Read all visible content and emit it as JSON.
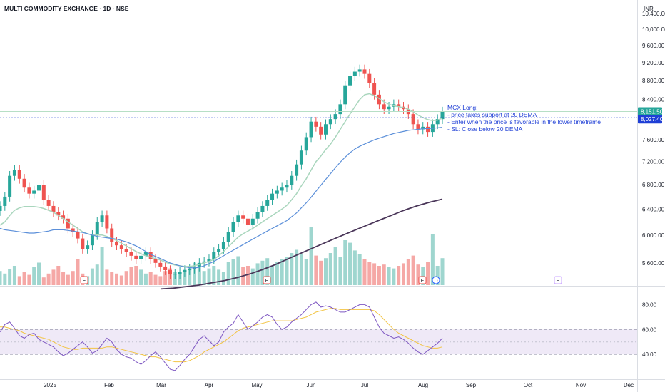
{
  "header": {
    "title": "MULTI COMMODITY EXCHANGE · 1D · NSE",
    "currency": "INR"
  },
  "colors": {
    "up": "#26a69a",
    "down": "#ef5350",
    "vol_up": "#9fd6cf",
    "vol_down": "#f5a8a6",
    "ema_fast": "#a9d6bd",
    "ma_mid": "#5b8fd9",
    "ma_slow": "#4a3659",
    "rsi": "#7e57c2",
    "rsi_ma": "#f2c443",
    "annotation": "#1f3fd6",
    "price_line": "#1f3fd6",
    "last_price_bg": "#26a69a"
  },
  "annotation": {
    "lines": [
      "MCX Long:",
      "- price takes support at 20 DEMA",
      "- Enter when the price is favorable in the lower timeframe",
      "- SL: Close below 20 DEMA"
    ]
  },
  "price_axis": {
    "labels": [
      "10,400.00",
      "10,000.00",
      "9,600.00",
      "9,200.00",
      "8,800.00",
      "8,400.00",
      "7,600.00",
      "7,200.00",
      "6,800.00",
      "6,400.00",
      "6,000.00",
      "5,600.00"
    ],
    "last_price": "8,151.50",
    "line_price": "8,027.40"
  },
  "rsi_axis": {
    "labels": [
      "80.00",
      "60.00",
      "40.00"
    ]
  },
  "time_axis": {
    "labels": [
      "2025",
      "Feb",
      "Mar",
      "Apr",
      "May",
      "Jun",
      "Jul",
      "Aug",
      "Sep",
      "Oct",
      "Nov",
      "Dec"
    ]
  },
  "event_markers": [
    "E",
    "E",
    "E",
    "D",
    "E"
  ],
  "chart_data": {
    "type": "candlestick",
    "ylim": [
      5300,
      10600
    ],
    "rsi_ylim": [
      20,
      90
    ],
    "rsi_band": [
      40,
      60
    ],
    "last_price": 8151.5,
    "line_price": 8027.4,
    "x_labels": [
      "2025",
      "Feb",
      "Mar",
      "Apr",
      "May",
      "Jun",
      "Jul",
      "Aug",
      "Sep",
      "Oct",
      "Nov",
      "Dec"
    ],
    "close_path": [
      6450,
      6600,
      6950,
      7050,
      6900,
      6750,
      6650,
      6700,
      6800,
      6550,
      6450,
      6350,
      6300,
      6250,
      6100,
      6050,
      5950,
      5800,
      5850,
      6000,
      6200,
      6300,
      6100,
      5900,
      5850,
      5800,
      5750,
      5700,
      5650,
      5700,
      5750,
      5650,
      5600,
      5550,
      5500,
      5450,
      5450,
      5480,
      5500,
      5520,
      5550,
      5600,
      5620,
      5650,
      5750,
      5800,
      5900,
      6050,
      6200,
      6300,
      6250,
      6150,
      6250,
      6350,
      6450,
      6550,
      6650,
      6700,
      6750,
      6800,
      6950,
      7150,
      7400,
      7650,
      7950,
      7850,
      7700,
      7900,
      8000,
      8100,
      8300,
      8700,
      8900,
      9000,
      9050,
      8950,
      8750,
      8500,
      8300,
      8200,
      8250,
      8300,
      8250,
      8200,
      8100,
      7900,
      7800,
      7850,
      7750,
      7900,
      8000,
      8150
    ],
    "ema20_path": [
      6150,
      6200,
      6300,
      6380,
      6420,
      6440,
      6440,
      6440,
      6430,
      6410,
      6380,
      6350,
      6300,
      6250,
      6200,
      6150,
      6100,
      6050,
      6020,
      6000,
      6000,
      6000,
      5980,
      5950,
      5920,
      5880,
      5840,
      5800,
      5760,
      5730,
      5700,
      5680,
      5660,
      5640,
      5610,
      5590,
      5570,
      5560,
      5550,
      5550,
      5560,
      5580,
      5600,
      5620,
      5650,
      5700,
      5760,
      5830,
      5900,
      5970,
      6020,
      6060,
      6100,
      6150,
      6200,
      6250,
      6300,
      6350,
      6400,
      6460,
      6550,
      6650,
      6780,
      6900,
      7050,
      7200,
      7300,
      7420,
      7520,
      7650,
      7800,
      7950,
      8100,
      8250,
      8400,
      8500,
      8520,
      8480,
      8420,
      8350,
      8300,
      8270,
      8250,
      8230,
      8200,
      8150,
      8080,
      8030,
      7990,
      7970,
      7980,
      8020
    ],
    "ma50_path": [
      6100,
      6080,
      6070,
      6060,
      6050,
      6040,
      6030,
      6030,
      6040,
      6050,
      6060,
      6080,
      6080,
      6080,
      6070,
      6060,
      6050,
      6040,
      6020,
      6000,
      5980,
      5970,
      5960,
      5950,
      5940,
      5920,
      5900,
      5870,
      5840,
      5800,
      5760,
      5720,
      5690,
      5660,
      5630,
      5600,
      5580,
      5560,
      5545,
      5535,
      5530,
      5540,
      5560,
      5590,
      5620,
      5660,
      5700,
      5740,
      5780,
      5820,
      5860,
      5900,
      5940,
      5980,
      6020,
      6060,
      6100,
      6140,
      6180,
      6220,
      6280,
      6340,
      6420,
      6500,
      6590,
      6690,
      6790,
      6890,
      6990,
      7090,
      7190,
      7280,
      7360,
      7430,
      7480,
      7520,
      7560,
      7600,
      7630,
      7660,
      7690,
      7720,
      7740,
      7760,
      7780,
      7790,
      7800,
      7810,
      7815,
      7820,
      7830,
      7840
    ],
    "ma200_path": [
      5250,
      5260,
      5280,
      5300,
      5330,
      5360,
      5400,
      5450,
      5510,
      5580,
      5660,
      5740,
      5820,
      5900,
      5980,
      6060,
      6140,
      6220,
      6300,
      6380,
      6450,
      6510,
      6560
    ],
    "rsi_path": [
      58,
      64,
      66,
      61,
      55,
      53,
      56,
      57,
      52,
      50,
      48,
      46,
      42,
      39,
      41,
      44,
      47,
      50,
      46,
      41,
      43,
      48,
      53,
      50,
      44,
      40,
      38,
      37,
      34,
      32,
      35,
      39,
      42,
      38,
      33,
      28,
      27,
      31,
      36,
      40,
      46,
      52,
      55,
      51,
      47,
      50,
      58,
      62,
      65,
      72,
      66,
      60,
      63,
      66,
      70,
      72,
      70,
      64,
      60,
      62,
      66,
      69,
      72,
      76,
      80,
      82,
      78,
      79,
      78,
      76,
      74,
      74,
      76,
      78,
      80,
      80,
      78,
      70,
      62,
      57,
      55,
      53,
      54,
      52,
      49,
      45,
      42,
      40,
      43,
      46,
      49,
      53
    ],
    "rsi_ma_path": [
      62,
      62,
      61,
      60,
      59,
      57,
      56,
      55,
      54,
      53,
      52,
      50,
      48,
      46,
      45,
      44,
      44,
      45,
      45,
      45,
      45,
      45,
      46,
      46,
      45,
      44,
      43,
      42,
      41,
      40,
      39,
      38,
      38,
      37,
      36,
      35,
      34,
      34,
      34,
      35,
      37,
      39,
      42,
      44,
      46,
      48,
      50,
      53,
      56,
      59,
      61,
      62,
      63,
      64,
      65,
      66,
      67,
      67,
      67,
      67,
      67,
      68,
      69,
      70,
      72,
      74,
      75,
      76,
      77,
      77,
      76,
      76,
      76,
      76,
      76,
      76,
      76,
      75,
      72,
      68,
      64,
      60,
      57,
      55,
      53,
      51,
      49,
      47,
      46,
      45,
      45,
      46
    ]
  }
}
